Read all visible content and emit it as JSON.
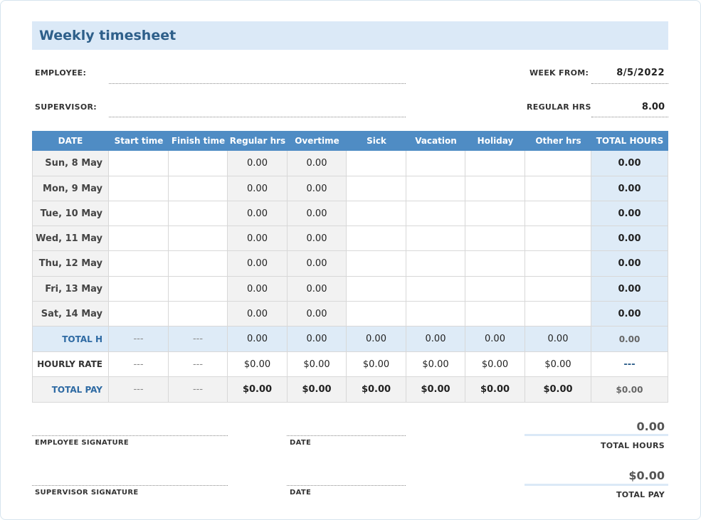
{
  "header": {
    "title": "Weekly timesheet"
  },
  "fields": {
    "employee_label": "EMPLOYEE:",
    "week_from_label": "WEEK FROM:",
    "week_from": "8/5/2022",
    "supervisor_label": "SUPERVISOR:",
    "regular_hrs_label": "REGULAR HRS",
    "regular_hrs": "8.00"
  },
  "table": {
    "columns": [
      "DATE",
      "Start time",
      "Finish time",
      "Regular hrs",
      "Overtime",
      "Sick",
      "Vacation",
      "Holiday",
      "Other hrs",
      "TOTAL HOURS"
    ],
    "rows": [
      [
        "Sun, 8 May",
        null,
        null,
        "0.00",
        "0.00",
        null,
        null,
        null,
        null,
        "0.00"
      ],
      [
        "Mon, 9 May",
        null,
        null,
        "0.00",
        "0.00",
        null,
        null,
        null,
        null,
        "0.00"
      ],
      [
        "Tue, 10 May",
        null,
        null,
        "0.00",
        "0.00",
        null,
        null,
        null,
        null,
        "0.00"
      ],
      [
        "Wed, 11 May",
        null,
        null,
        "0.00",
        "0.00",
        null,
        null,
        null,
        null,
        "0.00"
      ],
      [
        "Thu, 12 May",
        null,
        null,
        "0.00",
        "0.00",
        null,
        null,
        null,
        null,
        "0.00"
      ],
      [
        "Fri, 13 May",
        null,
        null,
        "0.00",
        "0.00",
        null,
        null,
        null,
        null,
        "0.00"
      ],
      [
        "Sat, 14 May",
        null,
        null,
        "0.00",
        "0.00",
        null,
        null,
        null,
        null,
        "0.00"
      ],
      [
        "TOTAL H",
        "---",
        "---",
        "0.00",
        "0.00",
        "0.00",
        "0.00",
        "0.00",
        "0.00",
        "0.00"
      ],
      [
        "HOURLY RATE",
        "---",
        "---",
        "$0.00",
        "$0.00",
        "$0.00",
        "$0.00",
        "$0.00",
        "$0.00",
        "---"
      ],
      [
        "TOTAL PAY",
        "---",
        "---",
        "$0.00",
        "$0.00",
        "$0.00",
        "$0.00",
        "$0.00",
        "$0.00",
        "$0.00"
      ]
    ]
  },
  "signatures": {
    "employee": "EMPLOYEE SIGNATURE",
    "employee_date": "DATE",
    "supervisor": "SUPERVISOR SIGNATURE",
    "supervisor_date": "DATE"
  },
  "summary": {
    "total_hours": "0.00",
    "total_hours_label": "TOTAL HOURS",
    "total_pay": "$0.00",
    "total_pay_label": "TOTAL PAY"
  }
}
